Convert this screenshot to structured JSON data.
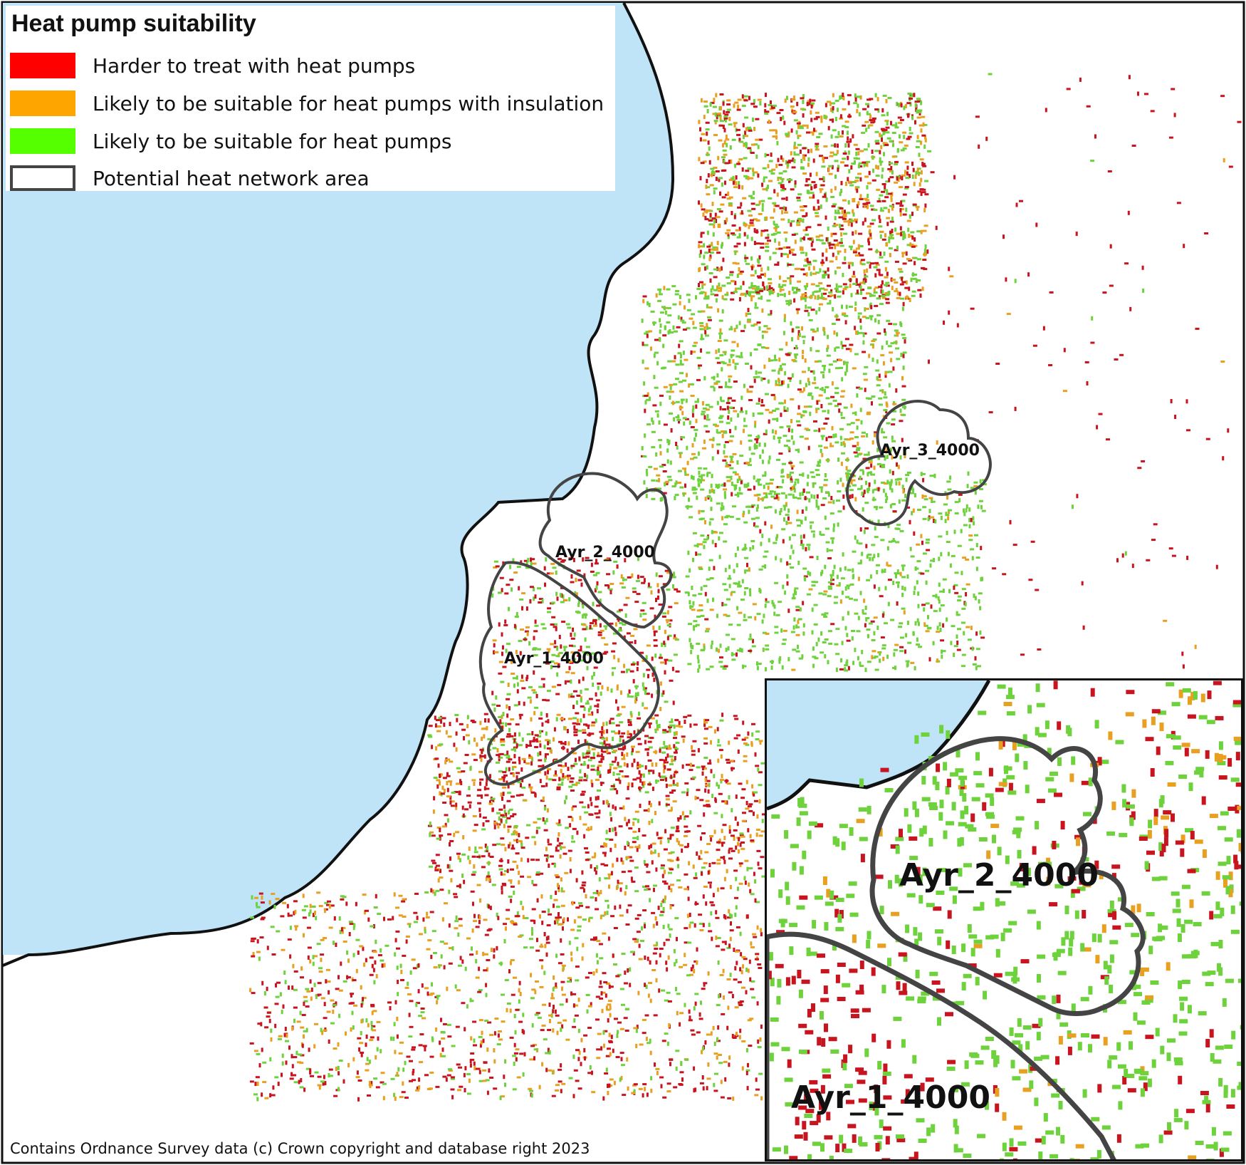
{
  "legend": {
    "title": "Heat pump suitability",
    "items": [
      {
        "label": "Harder to treat with heat pumps",
        "color": "#ff0000",
        "kind": "fill"
      },
      {
        "label": "Likely to be suitable for heat pumps with insulation",
        "color": "#ffa500",
        "kind": "fill"
      },
      {
        "label": "Likely to be suitable for heat pumps",
        "color": "#55ff00",
        "kind": "fill"
      },
      {
        "label": "Potential heat network area",
        "color": "#444444",
        "kind": "outline"
      }
    ]
  },
  "areas": {
    "ayr_1": "Ayr_1_4000",
    "ayr_2": "Ayr_2_4000",
    "ayr_3": "Ayr_3_4000"
  },
  "inset_labels": {
    "ayr_1": "Ayr_1_4000",
    "ayr_2": "Ayr_2_4000"
  },
  "attribution": "Contains Ordnance Survey data (c) Crown copyright and database right 2023",
  "colors": {
    "sea": "#bfe4f8",
    "building_red": "#c8141e",
    "building_orange": "#e8a020",
    "building_green": "#6ed23c",
    "network_outline": "#444444",
    "coastline": "#111111"
  }
}
